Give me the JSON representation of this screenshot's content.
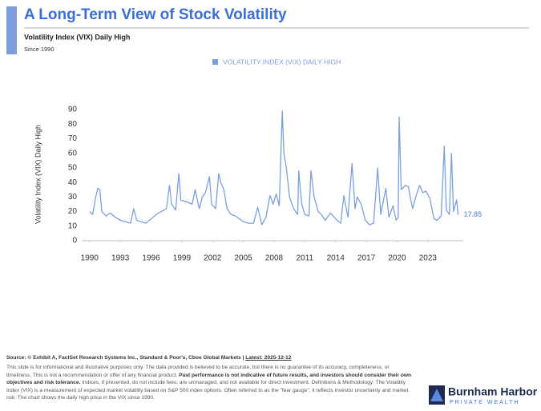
{
  "header": {
    "title": "A Long-Term View of Stock Volatility",
    "subtitle": "Volatility Index (VIX) Daily High",
    "note": "Since 1990"
  },
  "chart_data": {
    "type": "line",
    "ylabel": "Volatility Index (VIX) Daily High",
    "x": [
      1990.0,
      1990.3,
      1990.6,
      1990.8,
      1991.0,
      1991.2,
      1991.6,
      1992.0,
      1992.5,
      1993.0,
      1993.5,
      1994.0,
      1994.3,
      1994.6,
      1995.0,
      1995.5,
      1996.0,
      1996.5,
      1997.0,
      1997.5,
      1997.8,
      1998.0,
      1998.4,
      1998.7,
      1998.9,
      1999.3,
      1999.7,
      2000.0,
      2000.3,
      2000.7,
      2001.0,
      2001.3,
      2001.7,
      2001.9,
      2002.3,
      2002.6,
      2002.8,
      2003.1,
      2003.4,
      2003.8,
      2004.2,
      2004.6,
      2005.0,
      2005.5,
      2006.0,
      2006.4,
      2006.8,
      2007.2,
      2007.6,
      2007.9,
      2008.2,
      2008.5,
      2008.8,
      2008.95,
      2009.2,
      2009.5,
      2009.9,
      2010.3,
      2010.4,
      2010.7,
      2011.0,
      2011.4,
      2011.6,
      2011.9,
      2012.3,
      2012.6,
      2013.0,
      2013.5,
      2014.0,
      2014.5,
      2014.8,
      2015.2,
      2015.6,
      2015.9,
      2016.1,
      2016.5,
      2016.9,
      2017.3,
      2017.7,
      2018.1,
      2018.4,
      2018.9,
      2019.2,
      2019.6,
      2019.9,
      2020.1,
      2020.2,
      2020.4,
      2020.8,
      2021.1,
      2021.5,
      2021.9,
      2022.2,
      2022.5,
      2022.8,
      2023.2,
      2023.6,
      2023.9,
      2024.3,
      2024.6,
      2024.8,
      2025.1,
      2025.3,
      2025.5,
      2025.8,
      2025.95
    ],
    "series": [
      {
        "name": "VOLATILITY INDEX (VIX) DAILY HIGH",
        "color": "#7c9fe0",
        "values": [
          20,
          18,
          30,
          36,
          35,
          20,
          17,
          19,
          16,
          14,
          13,
          12,
          22,
          14,
          13,
          12,
          15,
          18,
          20,
          22,
          38,
          25,
          21,
          46,
          28,
          27,
          26,
          25,
          35,
          22,
          30,
          33,
          44,
          25,
          22,
          46,
          40,
          35,
          22,
          18,
          17,
          15,
          13,
          12,
          12,
          23,
          11,
          16,
          31,
          25,
          32,
          24,
          89,
          60,
          50,
          30,
          22,
          18,
          48,
          25,
          18,
          17,
          48,
          30,
          20,
          18,
          14,
          19,
          15,
          12,
          31,
          16,
          53,
          22,
          30,
          25,
          14,
          11,
          12,
          50,
          18,
          36,
          16,
          24,
          14,
          16,
          85,
          35,
          38,
          37,
          22,
          32,
          38,
          33,
          34,
          29,
          15,
          14,
          17,
          65,
          21,
          18,
          60,
          20,
          28,
          17.85
        ]
      }
    ],
    "xlim": [
      1989,
      2027
    ],
    "ylim": [
      0,
      90
    ],
    "xticks": [
      1990,
      1993,
      1996,
      1999,
      2002,
      2005,
      2008,
      2011,
      2014,
      2017,
      2020,
      2023
    ],
    "yticks": [
      0,
      10,
      20,
      30,
      40,
      50,
      60,
      70,
      80,
      90
    ],
    "grid": false,
    "legend": "top"
  },
  "footer": {
    "source": "Source: © Exhibit A, FactSet Research Systems Inc., Standard & Poor's, Cboe Global Markets | ",
    "latest": "Latest: 2025-12-12",
    "disclaimer": [
      "This slide is for informational and illustrative purposes only. The data provided is believed to be accurate, but there is no guarantee of its accuracy, completeness, or timeliness. This is not a recommendation or offer of any financial product. ",
      "Past performance is not indicative of future results, and investors should consider their own objectives and risk tolerance.",
      " Indices, if presented, do not include fees; are unmanaged, and not available for direct investment. Definitions & Methodology: The Volatility Index (VIX) is a measurement of expected market volatility based on S&P 500 index options. Often referred to as the \"fear gauge\", it reflects investor uncertainty and market risk. The chart shows the daily high price in the VIX since 1990."
    ],
    "logo": "Burnham Harbor",
    "logo_sub": "PRIVATE WEALTH"
  }
}
